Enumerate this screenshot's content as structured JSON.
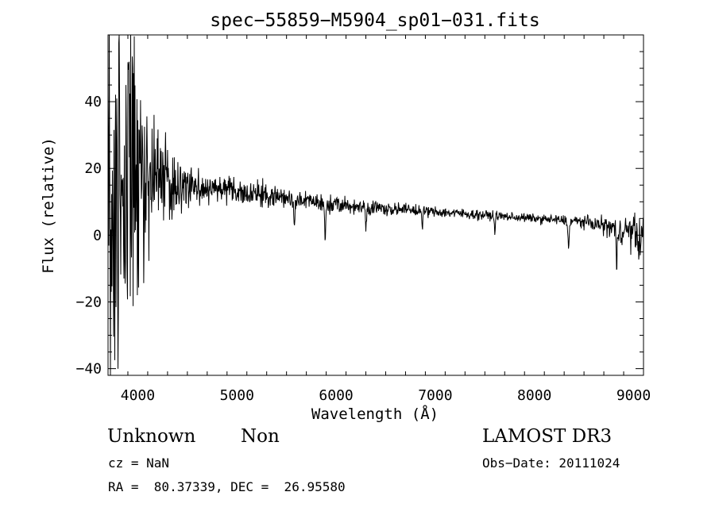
{
  "chart_data": {
    "type": "line",
    "title": "spec−55859−M5904_sp01−031.fits",
    "xlabel": "Wavelength (Å)",
    "ylabel": "Flux (relative)",
    "xlim": [
      3700,
      9100
    ],
    "ylim": [
      -42,
      60
    ],
    "xticks": [
      4000,
      5000,
      6000,
      7000,
      8000,
      9000
    ],
    "yticks": [
      -40,
      -20,
      0,
      20,
      40
    ],
    "ytick_labels": [
      "−40",
      "−20",
      "0",
      "20",
      "40"
    ],
    "grid": false,
    "series": [
      {
        "name": "flux",
        "continuum": [
          [
            3700,
            12
          ],
          [
            4000,
            17
          ],
          [
            4500,
            15
          ],
          [
            5000,
            13
          ],
          [
            5500,
            11
          ],
          [
            6000,
            9
          ],
          [
            6500,
            8
          ],
          [
            7000,
            7
          ],
          [
            7500,
            6
          ],
          [
            8000,
            5
          ],
          [
            8500,
            4
          ],
          [
            9000,
            1
          ],
          [
            9100,
            0
          ]
        ],
        "noise": [
          [
            3700,
            35
          ],
          [
            3950,
            35
          ],
          [
            4100,
            12
          ],
          [
            4500,
            4
          ],
          [
            5000,
            2.5
          ],
          [
            6000,
            1.5
          ],
          [
            7000,
            1
          ],
          [
            8000,
            0.8
          ],
          [
            8600,
            1.2
          ],
          [
            9100,
            4
          ]
        ],
        "absorption_lines": [
          [
            5577,
            -8
          ],
          [
            5890,
            -10
          ],
          [
            6300,
            -5
          ],
          [
            6870,
            -4
          ],
          [
            7600,
            -4
          ],
          [
            8345,
            -9
          ],
          [
            8830,
            -12
          ],
          [
            9050,
            -6
          ]
        ]
      }
    ]
  },
  "info": {
    "class": "Unknown",
    "subclass": "Non",
    "cz": "cz = NaN",
    "coords": "RA =  80.37339, DEC =  26.95580",
    "survey": "LAMOST DR3",
    "obs_date": "Obs−Date: 20111024"
  }
}
